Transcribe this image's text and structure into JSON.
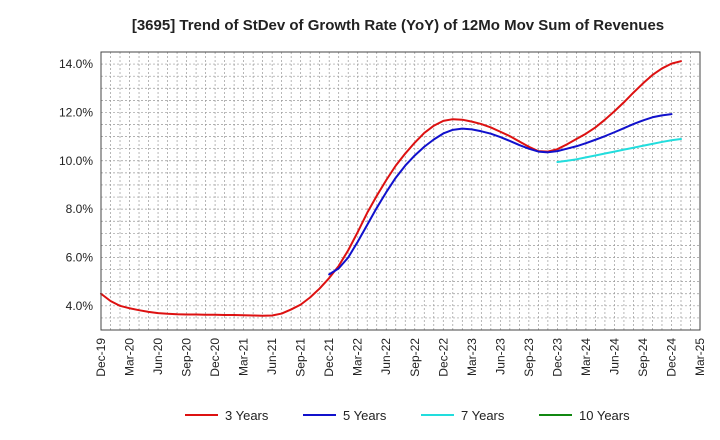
{
  "chart_data": {
    "type": "line",
    "title": "[3695]  Trend of StDev of Growth Rate (YoY) of 12Mo Mov Sum of Revenues",
    "xlabel": "",
    "ylabel": "",
    "x_ticks": [
      "Dec-19",
      "Mar-20",
      "Jun-20",
      "Sep-20",
      "Dec-20",
      "Mar-21",
      "Jun-21",
      "Sep-21",
      "Dec-21",
      "Mar-22",
      "Jun-22",
      "Sep-22",
      "Dec-22",
      "Mar-23",
      "Jun-23",
      "Sep-23",
      "Dec-23",
      "Mar-24",
      "Jun-24",
      "Sep-24",
      "Dec-24",
      "Mar-25"
    ],
    "y_ticks": [
      4.0,
      6.0,
      8.0,
      10.0,
      12.0,
      14.0
    ],
    "y_tick_labels": [
      "4.0%",
      "6.0%",
      "8.0%",
      "10.0%",
      "12.0%",
      "14.0%"
    ],
    "ylim": [
      3.0,
      14.5
    ],
    "grid": true,
    "legend_position": "bottom",
    "x_start": "Dec-19",
    "series": [
      {
        "name": "3 Years",
        "color": "#dd1111",
        "start_month_index": 0,
        "values": [
          4.5,
          4.2,
          4.0,
          3.9,
          3.82,
          3.75,
          3.7,
          3.67,
          3.65,
          3.64,
          3.64,
          3.63,
          3.63,
          3.62,
          3.62,
          3.61,
          3.6,
          3.59,
          3.6,
          3.68,
          3.85,
          4.05,
          4.35,
          4.72,
          5.15,
          5.65,
          6.3,
          7.05,
          7.85,
          8.55,
          9.2,
          9.8,
          10.3,
          10.75,
          11.15,
          11.45,
          11.65,
          11.72,
          11.7,
          11.62,
          11.52,
          11.38,
          11.2,
          11.02,
          10.8,
          10.58,
          10.4,
          10.38,
          10.48,
          10.68,
          10.9,
          11.12,
          11.38,
          11.7,
          12.05,
          12.42,
          12.82,
          13.2,
          13.55,
          13.82,
          14.02,
          14.12
        ]
      },
      {
        "name": "5 Years",
        "color": "#1111cc",
        "start_month_index": 24,
        "values": [
          5.3,
          5.55,
          6.0,
          6.65,
          7.35,
          8.05,
          8.7,
          9.3,
          9.8,
          10.22,
          10.58,
          10.88,
          11.13,
          11.28,
          11.33,
          11.3,
          11.22,
          11.12,
          10.98,
          10.82,
          10.65,
          10.5,
          10.38,
          10.35,
          10.4,
          10.5,
          10.6,
          10.73,
          10.87,
          11.02,
          11.18,
          11.35,
          11.52,
          11.67,
          11.8,
          11.88,
          11.93
        ]
      },
      {
        "name": "7 Years",
        "color": "#22dddd",
        "start_month_index": 48,
        "values": [
          9.95,
          10.0,
          10.06,
          10.14,
          10.22,
          10.3,
          10.38,
          10.46,
          10.54,
          10.62,
          10.7,
          10.78,
          10.85,
          10.9
        ]
      },
      {
        "name": "10 Years",
        "color": "#118811",
        "start_month_index": 0,
        "values": []
      }
    ]
  }
}
